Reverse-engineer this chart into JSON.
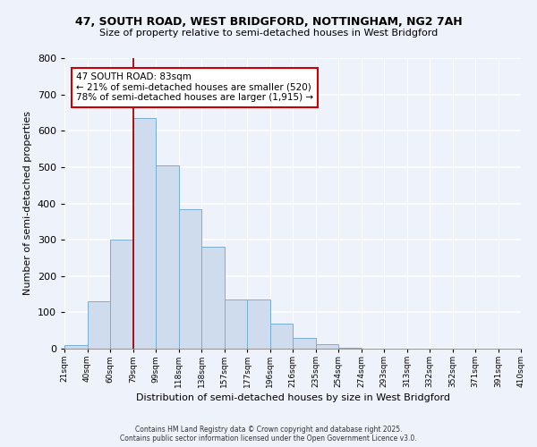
{
  "title_line1": "47, SOUTH ROAD, WEST BRIDGFORD, NOTTINGHAM, NG2 7AH",
  "title_line2": "Size of property relative to semi-detached houses in West Bridgford",
  "xlabel": "Distribution of semi-detached houses by size in West Bridgford",
  "ylabel": "Number of semi-detached properties",
  "bin_labels": [
    "21sqm",
    "40sqm",
    "60sqm",
    "79sqm",
    "99sqm",
    "118sqm",
    "138sqm",
    "157sqm",
    "177sqm",
    "196sqm",
    "216sqm",
    "235sqm",
    "254sqm",
    "274sqm",
    "293sqm",
    "313sqm",
    "332sqm",
    "352sqm",
    "371sqm",
    "391sqm",
    "410sqm"
  ],
  "bin_values": [
    10,
    130,
    300,
    635,
    505,
    385,
    280,
    135,
    135,
    70,
    30,
    12,
    3,
    0,
    0,
    0,
    0,
    0,
    0,
    0
  ],
  "bar_color": "#cfdcee",
  "bar_edge_color": "#7aadd4",
  "vline_color": "#aa0000",
  "annotation_text": "47 SOUTH ROAD: 83sqm\n← 21% of semi-detached houses are smaller (520)\n78% of semi-detached houses are larger (1,915) →",
  "annotation_box_color": "#ffffff",
  "annotation_box_edge": "#cc0000",
  "ylim": [
    0,
    800
  ],
  "yticks": [
    0,
    100,
    200,
    300,
    400,
    500,
    600,
    700,
    800
  ],
  "bg_color": "#eef2fb",
  "grid_color": "#ffffff",
  "footer_line1": "Contains HM Land Registry data © Crown copyright and database right 2025.",
  "footer_line2": "Contains public sector information licensed under the Open Government Licence v3.0."
}
